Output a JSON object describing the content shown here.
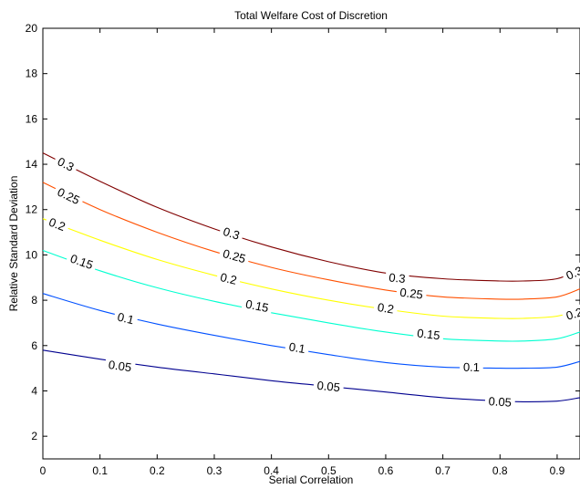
{
  "chart_data": {
    "type": "line",
    "title": "Total Welfare Cost of Discretion",
    "xlabel": "Serial Correlation",
    "ylabel": "Relative Standard Deviation",
    "xlim": [
      0,
      0.94
    ],
    "ylim": [
      1,
      20
    ],
    "xticks": [
      0,
      0.1,
      0.2,
      0.3,
      0.4,
      0.5,
      0.6,
      0.7,
      0.8,
      0.9
    ],
    "xtick_labels": [
      "0",
      "0.1",
      "0.2",
      "0.3",
      "0.4",
      "0.5",
      "0.6",
      "0.7",
      "0.8",
      "0.9"
    ],
    "yticks": [
      2,
      4,
      6,
      8,
      10,
      12,
      14,
      16,
      18,
      20
    ],
    "ytick_labels": [
      "2",
      "4",
      "6",
      "8",
      "10",
      "12",
      "14",
      "16",
      "18",
      "20"
    ],
    "grid": false,
    "series": [
      {
        "name": "0.05",
        "color": "#00008f",
        "x": [
          0,
          0.1,
          0.2,
          0.3,
          0.4,
          0.5,
          0.6,
          0.7,
          0.8,
          0.84,
          0.9,
          0.94
        ],
        "y": [
          5.8,
          5.4,
          5.05,
          4.75,
          4.45,
          4.2,
          3.95,
          3.7,
          3.55,
          3.52,
          3.55,
          3.7
        ],
        "labels": [
          {
            "x": 0.135,
            "y": 5.1
          },
          {
            "x": 0.5,
            "y": 4.2
          },
          {
            "x": 0.8,
            "y": 3.52
          }
        ]
      },
      {
        "name": "0.1",
        "color": "#0050ff",
        "x": [
          0,
          0.1,
          0.2,
          0.3,
          0.4,
          0.5,
          0.6,
          0.7,
          0.8,
          0.84,
          0.9,
          0.94
        ],
        "y": [
          8.3,
          7.55,
          6.95,
          6.45,
          6.0,
          5.6,
          5.25,
          5.05,
          5.0,
          5.0,
          5.05,
          5.3
        ],
        "labels": [
          {
            "x": 0.145,
            "y": 7.2
          },
          {
            "x": 0.445,
            "y": 5.9
          },
          {
            "x": 0.75,
            "y": 5.05
          }
        ]
      },
      {
        "name": "0.15",
        "color": "#00ffd0",
        "x": [
          0,
          0.1,
          0.2,
          0.3,
          0.4,
          0.5,
          0.6,
          0.7,
          0.8,
          0.84,
          0.9,
          0.94
        ],
        "y": [
          10.2,
          9.3,
          8.55,
          7.95,
          7.45,
          7.0,
          6.6,
          6.3,
          6.2,
          6.2,
          6.3,
          6.6
        ],
        "labels": [
          {
            "x": 0.068,
            "y": 9.7
          },
          {
            "x": 0.375,
            "y": 7.75
          },
          {
            "x": 0.675,
            "y": 6.5
          }
        ]
      },
      {
        "name": "0.2",
        "color": "#ffff00",
        "x": [
          0,
          0.1,
          0.2,
          0.3,
          0.4,
          0.5,
          0.6,
          0.7,
          0.8,
          0.84,
          0.9,
          0.94
        ],
        "y": [
          11.6,
          10.65,
          9.8,
          9.1,
          8.5,
          8.0,
          7.6,
          7.3,
          7.2,
          7.2,
          7.3,
          7.6
        ],
        "labels": [
          {
            "x": 0.025,
            "y": 11.35
          },
          {
            "x": 0.325,
            "y": 8.95
          },
          {
            "x": 0.6,
            "y": 7.65
          },
          {
            "x": 0.93,
            "y": 7.4
          }
        ]
      },
      {
        "name": "0.25",
        "color": "#ff5000",
        "x": [
          0,
          0.1,
          0.2,
          0.3,
          0.4,
          0.5,
          0.6,
          0.7,
          0.8,
          0.84,
          0.9,
          0.94
        ],
        "y": [
          13.2,
          12.0,
          11.0,
          10.15,
          9.45,
          8.9,
          8.45,
          8.15,
          8.05,
          8.05,
          8.15,
          8.5
        ],
        "labels": [
          {
            "x": 0.045,
            "y": 12.6
          },
          {
            "x": 0.335,
            "y": 9.95
          },
          {
            "x": 0.645,
            "y": 8.3
          }
        ]
      },
      {
        "name": "0.3",
        "color": "#800000",
        "x": [
          0,
          0.1,
          0.2,
          0.3,
          0.4,
          0.5,
          0.6,
          0.7,
          0.8,
          0.84,
          0.9,
          0.94
        ],
        "y": [
          14.5,
          13.25,
          12.1,
          11.15,
          10.35,
          9.7,
          9.2,
          8.95,
          8.85,
          8.85,
          8.95,
          9.4
        ],
        "labels": [
          {
            "x": 0.04,
            "y": 14.0
          },
          {
            "x": 0.33,
            "y": 10.95
          },
          {
            "x": 0.62,
            "y": 8.98
          },
          {
            "x": 0.93,
            "y": 9.2
          }
        ]
      }
    ]
  }
}
